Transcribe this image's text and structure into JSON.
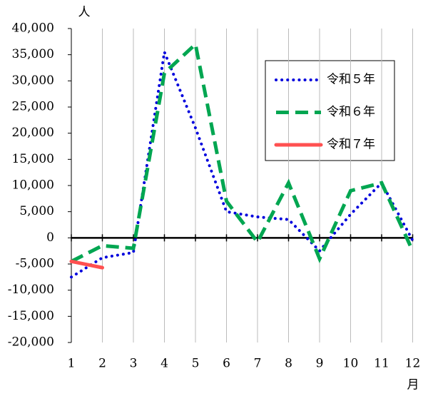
{
  "chart_data": {
    "type": "line",
    "y_unit": "人",
    "x_unit": "月",
    "categories": [
      "1",
      "2",
      "3",
      "4",
      "5",
      "6",
      "7",
      "8",
      "9",
      "10",
      "11",
      "12"
    ],
    "series": [
      {
        "name": "令和５年",
        "color": "#0000dd",
        "style": "dotted",
        "values": [
          -7500,
          -3800,
          -2800,
          35500,
          21000,
          5000,
          4000,
          3500,
          -2500,
          4500,
          10500,
          -500
        ]
      },
      {
        "name": "令和６年",
        "color": "#00a651",
        "style": "dashed",
        "values": [
          -4500,
          -1500,
          -2000,
          31500,
          37000,
          7000,
          -800,
          10500,
          -4000,
          9000,
          10500,
          -2500
        ]
      },
      {
        "name": "令和７年",
        "color": "#ff5050",
        "style": "solid",
        "values": [
          -4500,
          -5700,
          null,
          null,
          null,
          null,
          null,
          null,
          null,
          null,
          null,
          null
        ]
      }
    ],
    "ylim": [
      -20000,
      40000
    ],
    "yticks": [
      {
        "value": 40000,
        "label": "40,000"
      },
      {
        "value": 35000,
        "label": "35,000"
      },
      {
        "value": 30000,
        "label": "30,000"
      },
      {
        "value": 25000,
        "label": "25,000"
      },
      {
        "value": 20000,
        "label": "20,000"
      },
      {
        "value": 15000,
        "label": "15,000"
      },
      {
        "value": 10000,
        "label": "10,000"
      },
      {
        "value": 5000,
        "label": "5,000"
      },
      0,
      {
        "value": -5000,
        "label": "-5,000"
      },
      {
        "value": -10000,
        "label": "-10,000"
      },
      {
        "value": -15000,
        "label": "-15,000"
      },
      {
        "value": -20000,
        "label": "-20,000"
      }
    ],
    "negative_tick_color": "#e00000",
    "grid": "vertical",
    "legend": "upper right"
  }
}
